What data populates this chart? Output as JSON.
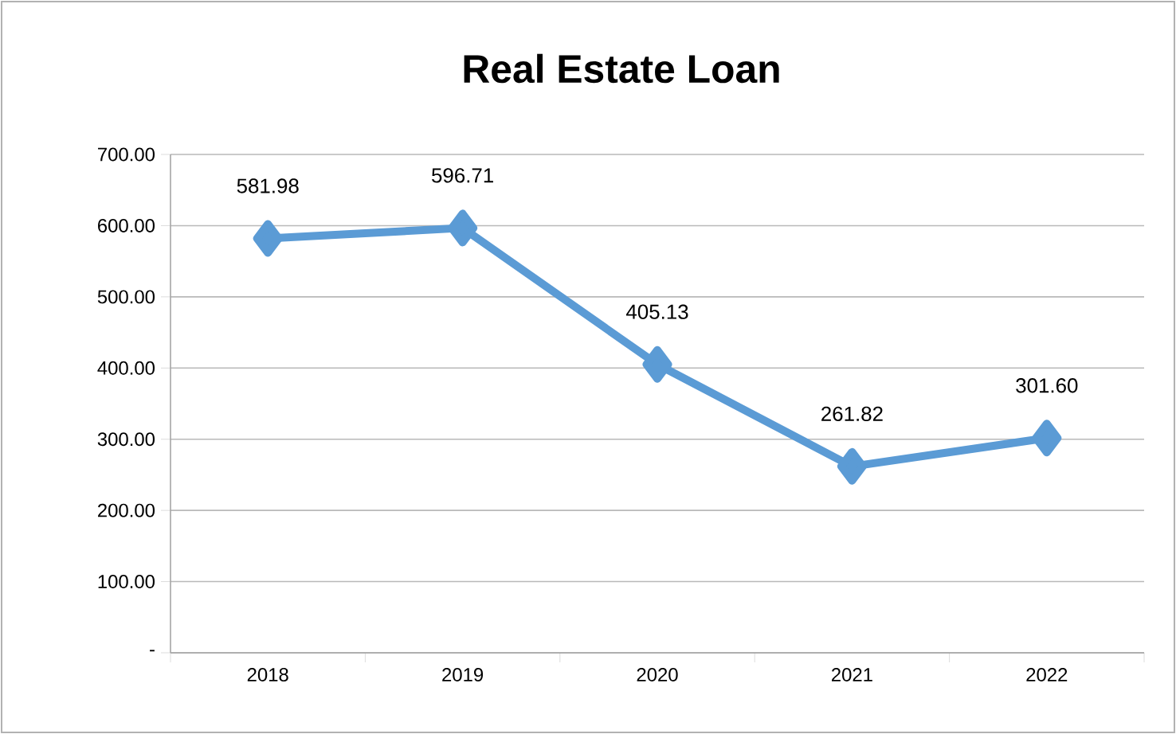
{
  "chart_data": {
    "type": "line",
    "title": "Real Estate Loan",
    "categories": [
      "2018",
      "2019",
      "2020",
      "2021",
      "2022"
    ],
    "series": [
      {
        "color": "#5b9bd5",
        "values": [
          581.98,
          596.71,
          405.13,
          261.82,
          301.6
        ],
        "value_labels": [
          "581.98",
          "596.71",
          "405.13",
          "261.82",
          "301.60"
        ]
      }
    ],
    "ylim": [
      0,
      700
    ],
    "yticks": [
      {
        "value": 0,
        "label": "-"
      },
      {
        "value": 100,
        "label": "100.00"
      },
      {
        "value": 200,
        "label": "200.00"
      },
      {
        "value": 300,
        "label": "300.00"
      },
      {
        "value": 400,
        "label": "400.00"
      },
      {
        "value": 500,
        "label": "500.00"
      },
      {
        "value": 600,
        "label": "600.00"
      },
      {
        "value": 700,
        "label": "700.00"
      }
    ],
    "grid": "y",
    "marker": "diamond",
    "line_style": "solid"
  }
}
